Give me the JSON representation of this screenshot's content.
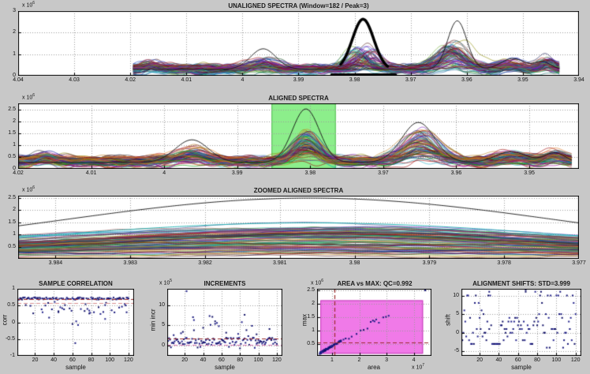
{
  "window": {
    "background": "#c8c8c8",
    "axes_background": "#ffffff",
    "grid_color": "#9b9b9b",
    "band_green": "#8cee8b",
    "rect_magenta": "#f07ae8",
    "marker_navy": "#16167a",
    "dash_dark_red": "#9b2b2b"
  },
  "chart_data": [
    {
      "id": "unaligned",
      "type": "line",
      "title": "UNALIGNED SPECTRA (Window=182 / Peak=3)",
      "y_exp_prefix": "x 10",
      "y_exp": "6",
      "xlim": [
        4.04,
        3.94
      ],
      "ylim": [
        0,
        3
      ],
      "xticks": {
        "v": [
          4.04,
          4.03,
          4.02,
          4.01,
          4,
          3.99,
          3.98,
          3.97,
          3.96,
          3.95,
          3.94
        ],
        "l": [
          "4.04",
          "4.03",
          "4.02",
          "4.01",
          "4",
          "3.99",
          "3.98",
          "3.97",
          "3.96",
          "3.95",
          "3.94"
        ]
      },
      "yticks": {
        "v": [
          0,
          1,
          2,
          3
        ],
        "l": [
          "0",
          "1",
          "2",
          "3"
        ]
      },
      "ensemble": {
        "n": 78,
        "seed": 7,
        "x_range": [
          4.0195,
          3.9435
        ],
        "base": [
          0.16,
          0.45
        ],
        "noise": 0.13,
        "peaks": [
          {
            "c": 4.0163,
            "w": 0.0016,
            "a": [
              0,
              0.3
            ],
            "j": 0.0008
          },
          {
            "c": 3.9963,
            "w": 0.0026,
            "a": [
              0,
              0.4
            ],
            "j": 0.0012
          },
          {
            "c": 3.9785,
            "w": 0.0023,
            "a": [
              0.05,
              1.1
            ],
            "j": 0.0022
          },
          {
            "c": 3.9625,
            "w": 0.003,
            "a": [
              0.05,
              1.25
            ],
            "j": 0.0016
          },
          {
            "c": 3.9525,
            "w": 0.0022,
            "a": [
              0,
              0.35
            ],
            "j": 0.001
          },
          {
            "c": 3.9458,
            "w": 0.0016,
            "a": [
              0,
              0.45
            ],
            "j": 0.0008
          }
        ]
      },
      "overlays": [
        {
          "kind": "sample_line",
          "color": "#111111",
          "lw": 0.9,
          "base": 0.3,
          "peaks": [
            {
              "c": 3.9963,
              "a": 0.95,
              "w": 0.0032
            },
            {
              "c": 3.9617,
              "a": 2.25,
              "w": 0.0024
            },
            {
              "c": 3.9518,
              "a": 0.5,
              "w": 0.003
            },
            {
              "c": 3.9465,
              "a": 0.35,
              "w": 0.002
            }
          ]
        },
        {
          "kind": "gauss",
          "color": "#000000",
          "lw": 3.5,
          "c": 3.9785,
          "a": 2.35,
          "base": 0.27,
          "w": 0.0027,
          "clip": [
            3.9825,
            3.9741
          ]
        },
        {
          "kind": "hbar",
          "color": "#000000",
          "lw": 3.5,
          "y": 0.05,
          "x": [
            3.9841,
            3.9727
          ]
        }
      ]
    },
    {
      "id": "aligned",
      "type": "line",
      "title": "ALIGNED SPECTRA",
      "y_exp_prefix": "x 10",
      "y_exp": "6",
      "xlim": [
        4.02,
        3.9432
      ],
      "ylim": [
        0,
        2.75
      ],
      "xticks": {
        "v": [
          4.02,
          4.01,
          4,
          3.99,
          3.98,
          3.97,
          3.96,
          3.95
        ],
        "l": [
          "4.02",
          "4.01",
          "4",
          "3.99",
          "3.98",
          "3.97",
          "3.96",
          "3.95"
        ]
      },
      "yticks": {
        "v": [
          0,
          0.5,
          1,
          1.5,
          2,
          2.5
        ],
        "l": [
          "0",
          "0.5",
          "1",
          "1.5",
          "2",
          "2.5"
        ]
      },
      "band": {
        "x": [
          3.9853,
          3.9765
        ],
        "color": "#8cee8b",
        "edge": "#55bb55"
      },
      "ensemble": {
        "n": 78,
        "seed": 11,
        "x_range": [
          4.0199,
          3.9442
        ],
        "base": [
          0.15,
          0.45
        ],
        "noise": 0.13,
        "peaks": [
          {
            "c": 4.0163,
            "w": 0.0016,
            "a": [
              0,
              0.3
            ],
            "j": 0.0006
          },
          {
            "c": 3.9962,
            "w": 0.0026,
            "a": [
              0,
              0.5
            ],
            "j": 0.0008
          },
          {
            "c": 3.9806,
            "w": 0.0023,
            "a": [
              0.1,
              1.35
            ],
            "j": 0.0004
          },
          {
            "c": 3.9648,
            "w": 0.003,
            "a": [
              0.1,
              1.3
            ],
            "j": 0.0008
          },
          {
            "c": 3.9525,
            "w": 0.0022,
            "a": [
              0,
              0.35
            ],
            "j": 0.0008
          },
          {
            "c": 3.9465,
            "w": 0.0016,
            "a": [
              0,
              0.4
            ],
            "j": 0.0006
          }
        ]
      },
      "overlays": [
        {
          "kind": "sample_line",
          "color": "#111111",
          "lw": 0.9,
          "base": 0.27,
          "peaks": [
            {
              "c": 3.9962,
              "a": 0.95,
              "w": 0.0032
            },
            {
              "c": 3.9806,
              "a": 2.25,
              "w": 0.0026
            },
            {
              "c": 3.9652,
              "a": 1.68,
              "w": 0.0032
            },
            {
              "c": 3.9525,
              "a": 0.45,
              "w": 0.003
            },
            {
              "c": 3.9465,
              "a": 0.4,
              "w": 0.002
            }
          ]
        }
      ]
    },
    {
      "id": "zoomed",
      "type": "line",
      "title": "ZOOMED ALIGNED SPECTRA",
      "y_exp_prefix": "x 10",
      "y_exp": "6",
      "xlim": [
        3.9845,
        3.977
      ],
      "ylim": [
        0,
        2.6
      ],
      "xticks": {
        "v": [
          3.984,
          3.983,
          3.982,
          3.981,
          3.98,
          3.979,
          3.978,
          3.977
        ],
        "l": [
          "3.984",
          "3.983",
          "3.982",
          "3.981",
          "3.98",
          "3.979",
          "3.978",
          "3.977"
        ]
      },
      "yticks": {
        "v": [
          0.5,
          1,
          1.5,
          2,
          2.5
        ],
        "l": [
          "0.5",
          "1",
          "1.5",
          "2",
          "2.5"
        ]
      },
      "ensemble": {
        "n": 90,
        "seed": 23,
        "x_range": [
          3.9845,
          3.977
        ],
        "base": [
          0.03,
          0.33
        ],
        "noise": 0.025,
        "peaks": [
          {
            "c": 3.9806,
            "w": 0.0046,
            "a": [
              0.02,
              1.15
            ],
            "j": 0.0007
          }
        ]
      },
      "overlays": [
        {
          "kind": "sample_line",
          "color": "#12b0b0",
          "lw": 0.9,
          "base": 0.16,
          "peaks": [
            {
              "c": 3.9806,
              "a": 1.32,
              "w": 0.005
            }
          ]
        },
        {
          "kind": "sample_line",
          "color": "#111111",
          "lw": 0.9,
          "base": 0.2,
          "peaks": [
            {
              "c": 3.9806,
              "a": 2.3,
              "w": 0.0047
            }
          ]
        }
      ]
    },
    {
      "id": "corr",
      "type": "scatter",
      "title": "SAMPLE CORRELATION",
      "xlabel": "sample",
      "ylabel": "corr",
      "xlim": [
        1,
        126
      ],
      "ylim": [
        -1,
        1
      ],
      "xticks": {
        "v": [
          20,
          40,
          60,
          80,
          100,
          120
        ],
        "l": [
          "20",
          "40",
          "60",
          "80",
          "100",
          "120"
        ]
      },
      "yticks": {
        "v": [
          -1,
          -0.5,
          0,
          0.5,
          1
        ],
        "l": [
          "-1",
          "-0.5",
          "0",
          "0.5",
          "1"
        ]
      },
      "gen": {
        "kind": "corr",
        "seed": 31,
        "n": 120,
        "level": 0.71,
        "spread": 0.05,
        "dip_p": 0.2,
        "dip": [
          0.1,
          0.45
        ]
      },
      "extra_points": [
        [
          63,
          -0.62
        ],
        [
          60,
          -0.05
        ],
        [
          66,
          -0.08
        ],
        [
          64,
          0.03
        ],
        [
          35,
          0.14
        ],
        [
          95,
          0.1
        ],
        [
          88,
          0.45
        ],
        [
          110,
          0.44
        ],
        [
          28,
          0.3
        ],
        [
          45,
          0.33
        ],
        [
          78,
          0.35
        ],
        [
          118,
          0.3
        ]
      ],
      "ref_lines": [
        {
          "o": "h",
          "v": 0.705,
          "color": "#9b2b2b"
        },
        {
          "o": "h",
          "v": 0.58,
          "color": "#d98f8f"
        }
      ]
    },
    {
      "id": "increments",
      "type": "scatter",
      "title": "INCREMENTS",
      "xlabel": "sample",
      "ylabel": "min incr",
      "y_exp_prefix": "x 10",
      "y_exp": "5",
      "xlim": [
        1,
        126
      ],
      "ylim": [
        -2.5,
        14
      ],
      "xticks": {
        "v": [
          20,
          40,
          60,
          80,
          100,
          120
        ],
        "l": [
          "20",
          "40",
          "60",
          "80",
          "100",
          "120"
        ]
      },
      "yticks": {
        "v": [
          0,
          5,
          10
        ],
        "l": [
          "0",
          "5",
          "10"
        ]
      },
      "gen": {
        "kind": "incr",
        "seed": 41,
        "n": 120,
        "base": 0.2,
        "spread": 1.8,
        "hi_p": 0.1,
        "hi": [
          1.5,
          5.5
        ]
      },
      "extra_points": [
        [
          22,
          13.4
        ],
        [
          47,
          7.3
        ],
        [
          50,
          7.1
        ],
        [
          85,
          7.6
        ],
        [
          53,
          6.0
        ],
        [
          55,
          5.6
        ],
        [
          57,
          4.8
        ],
        [
          40,
          4.4
        ],
        [
          112,
          4.1
        ],
        [
          30,
          3.8
        ],
        [
          18,
          3.4
        ],
        [
          65,
          3.2
        ],
        [
          78,
          2.9
        ],
        [
          98,
          2.8
        ],
        [
          8,
          2.6
        ]
      ],
      "ref_lines": [
        {
          "o": "h",
          "v": 1.85,
          "color": "#9b2b2b"
        },
        {
          "o": "h",
          "v": 0.3,
          "color": "#d77bb6"
        }
      ]
    },
    {
      "id": "area_vs_max",
      "type": "scatter",
      "title": "AREA vs MAX: QC=0.992",
      "xlabel": "area",
      "ylabel": "max",
      "y_exp_prefix": "x 10",
      "y_exp": "6",
      "x_exp_prefix": "x 10",
      "x_exp": "7",
      "xlim": [
        0.45,
        4.65
      ],
      "ylim": [
        0.05,
        2.56
      ],
      "xticks": {
        "v": [
          1,
          2,
          3,
          4
        ],
        "l": [
          "1",
          "2",
          "3",
          "4"
        ]
      },
      "yticks": {
        "v": [
          0.5,
          1,
          1.5,
          2,
          2.5
        ],
        "l": [
          "0.5",
          "1",
          "1.5",
          "2",
          "2.5"
        ]
      },
      "rect": {
        "x": [
          0.57,
          4.34
        ],
        "y": [
          0.13,
          2.13
        ],
        "color": "#f07ae8",
        "edge": "#c23ab8"
      },
      "gen": {
        "kind": "area",
        "seed": 51,
        "n": 85,
        "a": [
          0.55,
          1.35
        ],
        "slope": 0.6,
        "icept": -0.18,
        "jit": 0.03
      },
      "extra_points": [
        [
          1.42,
          0.66
        ],
        [
          1.5,
          0.7
        ],
        [
          1.62,
          0.69
        ],
        [
          1.72,
          0.77
        ],
        [
          1.9,
          0.87
        ],
        [
          2.05,
          1.0
        ],
        [
          2.16,
          1.02
        ],
        [
          2.3,
          1.07
        ],
        [
          2.42,
          1.32
        ],
        [
          2.5,
          1.37
        ],
        [
          2.56,
          1.34
        ],
        [
          2.62,
          1.41
        ],
        [
          2.72,
          1.29
        ],
        [
          2.88,
          1.49
        ],
        [
          2.98,
          1.51
        ],
        [
          3.08,
          1.55
        ],
        [
          4.42,
          2.5
        ]
      ],
      "ref_lines": [
        {
          "o": "v",
          "v": 1.1,
          "color": "#9b2b2b"
        },
        {
          "o": "h",
          "v": 0.55,
          "color": "#9b2b2b"
        }
      ]
    },
    {
      "id": "shifts",
      "type": "scatter",
      "title": "ALIGNMENT SHIFTS: STD=3.999",
      "xlabel": "sample",
      "ylabel": "shift",
      "xlim": [
        1,
        126
      ],
      "ylim": [
        -6.2,
        11.8
      ],
      "xticks": {
        "v": [
          20,
          40,
          60,
          80,
          100,
          120
        ],
        "l": [
          "20",
          "40",
          "60",
          "80",
          "100",
          "120"
        ]
      },
      "yticks": {
        "v": [
          -5,
          0,
          5,
          10
        ],
        "l": [
          "-5",
          "0",
          "5",
          "10"
        ]
      },
      "gen": {
        "kind": "shift",
        "seed": 61,
        "n": 120,
        "vals": [
          0,
          0,
          0,
          0,
          0,
          0,
          1,
          1,
          1,
          1,
          2,
          2,
          3,
          3,
          3,
          3,
          3,
          4,
          4,
          5,
          5,
          6,
          8,
          8,
          8,
          10,
          10,
          10,
          11,
          -1,
          -1,
          -2,
          -2,
          -2,
          -3,
          -3,
          -4
        ],
        "run": {
          "x": [
            34,
            41
          ],
          "y": -3
        }
      },
      "extra_points": [
        [
          24,
          12
        ],
        [
          68,
          11.5
        ],
        [
          30,
          11
        ]
      ],
      "ref_lines": []
    }
  ]
}
